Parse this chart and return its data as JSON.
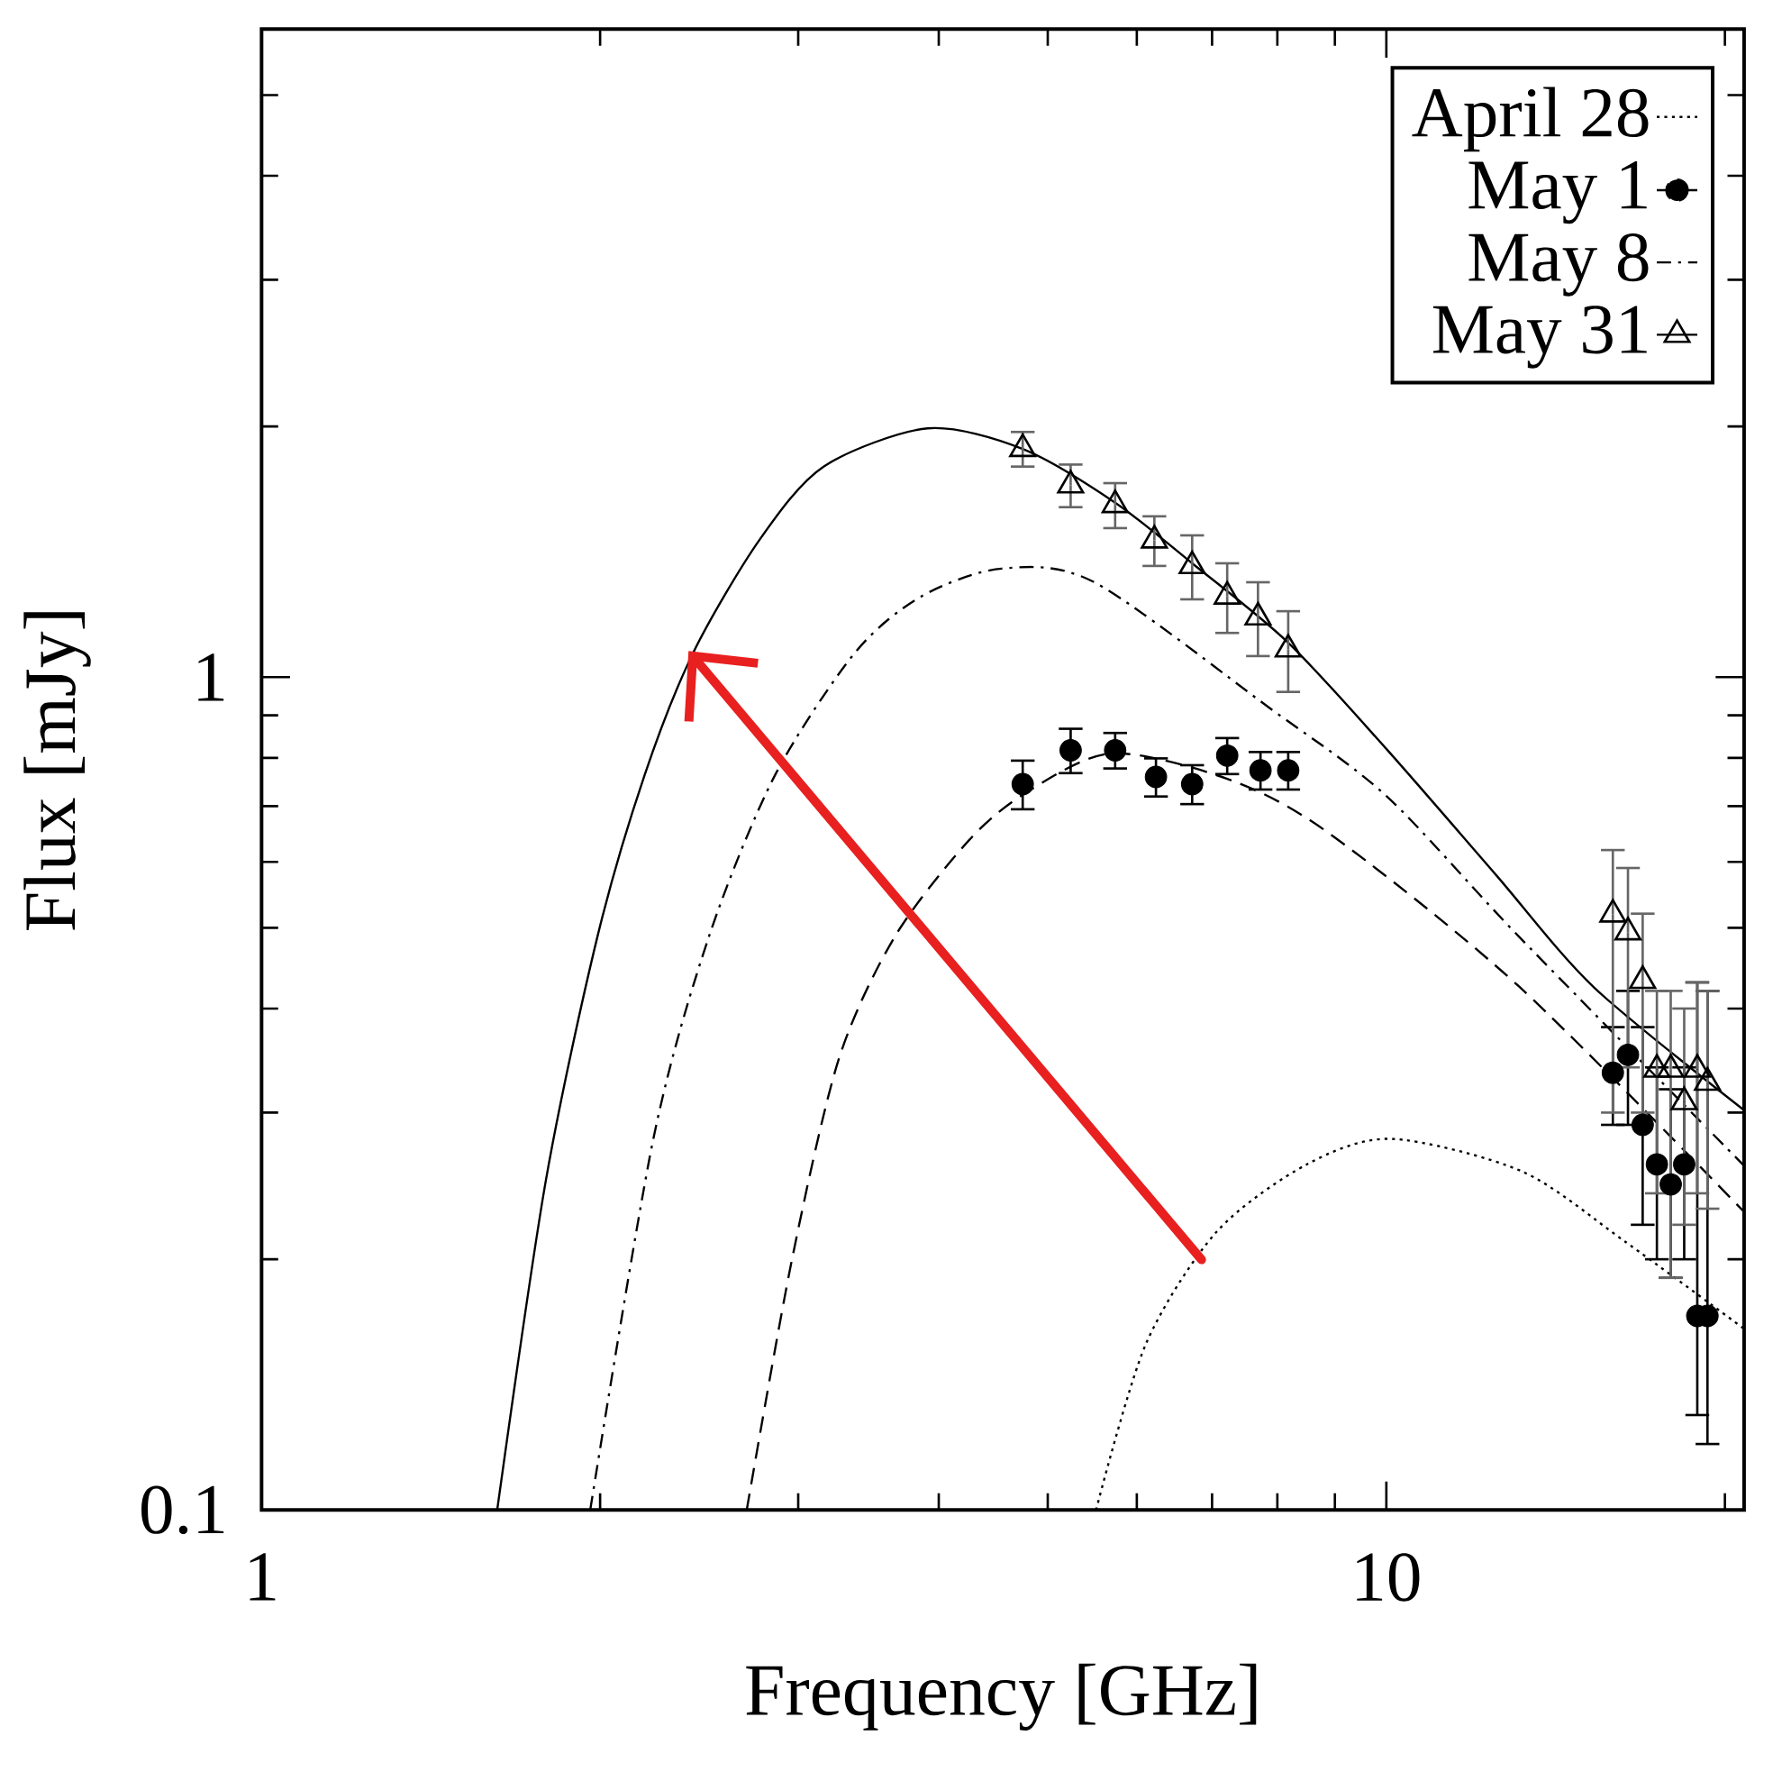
{
  "chart_data": {
    "type": "line",
    "xlabel": "Frequency [GHz]",
    "ylabel": "Flux [mJy]",
    "log": "xy",
    "legend": "top right",
    "xlim": [
      1,
      20.8
    ],
    "ylim": [
      0.1,
      6
    ],
    "xticks": [
      1,
      10,
      {
        "value": 2,
        "label": null
      },
      {
        "value": 3,
        "label": null
      },
      {
        "value": 4,
        "label": null
      },
      {
        "value": 5,
        "label": null
      },
      {
        "value": 6,
        "label": null
      },
      {
        "value": 7,
        "label": null
      },
      {
        "value": 8,
        "label": null
      },
      {
        "value": 9,
        "label": null
      },
      {
        "value": 20,
        "label": null
      }
    ],
    "yticks": [
      0.1,
      1,
      {
        "value": 0.2,
        "label": null
      },
      {
        "value": 0.3,
        "label": null
      },
      {
        "value": 0.4,
        "label": null
      },
      {
        "value": 0.5,
        "label": null
      },
      {
        "value": 0.6,
        "label": null
      },
      {
        "value": 0.7,
        "label": null
      },
      {
        "value": 0.8,
        "label": null
      },
      {
        "value": 0.9,
        "label": null
      },
      {
        "value": 2,
        "label": null
      },
      {
        "value": 3,
        "label": null
      },
      {
        "value": 4,
        "label": null
      },
      {
        "value": 5,
        "label": null
      }
    ],
    "series": [
      {
        "name": "April 28",
        "type": "line",
        "color": "#000000",
        "line_style": "dotted",
        "x": [
          5.52,
          6.11,
          7.07,
          8.5,
          10.1,
          13.2,
          16.3,
          20.8
        ],
        "values": [
          0.1,
          0.158,
          0.216,
          0.26,
          0.279,
          0.255,
          0.21,
          0.165
        ]
      },
      {
        "name": "May 1",
        "type": "line",
        "color": "#000000",
        "line_style": "dashed",
        "x": [
          2.7,
          2.96,
          3.26,
          3.66,
          4.26,
          4.8,
          5.7,
          7.22,
          8.87,
          13.1,
          20.8
        ],
        "values": [
          0.1,
          0.199,
          0.348,
          0.489,
          0.638,
          0.729,
          0.81,
          0.755,
          0.651,
          0.426,
          0.228
        ]
      },
      {
        "type": "scatter",
        "color": "#000000",
        "marker": "circle",
        "x": [
          4.75,
          5.24,
          5.74,
          6.24,
          6.72,
          7.22,
          7.73,
          8.18,
          15.9,
          16.4,
          16.9,
          17.4,
          17.9,
          18.4,
          18.9,
          19.3
        ],
        "values": [
          0.744,
          0.817,
          0.817,
          0.759,
          0.744,
          0.805,
          0.773,
          0.773,
          0.335,
          0.352,
          0.29,
          0.26,
          0.246,
          0.26,
          0.171,
          0.171
        ],
        "errors": [
          0.05,
          0.05,
          0.04,
          0.04,
          0.04,
          0.04,
          0.04,
          0.04,
          [
            0.29,
            0.38
          ],
          [
            0.29,
            0.42
          ],
          [
            0.22,
            0.38
          ],
          [
            0.2,
            0.34
          ],
          [
            0.19,
            0.32
          ],
          [
            0.2,
            0.34
          ],
          [
            0.13,
            0.43
          ],
          [
            0.12,
            0.42
          ]
        ]
      },
      {
        "name": "May 8",
        "type": "line",
        "color": "#000000",
        "line_style": "dashdot",
        "x": [
          1.96,
          2.23,
          2.5,
          2.86,
          3.37,
          3.86,
          4.55,
          5.5,
          7.86,
          10,
          13.1,
          20.8
        ],
        "values": [
          0.1,
          0.279,
          0.489,
          0.762,
          1.07,
          1.25,
          1.35,
          1.3,
          0.92,
          0.72,
          0.489,
          0.259
        ]
      },
      {
        "name": "May 31",
        "type": "line",
        "color": "#000000",
        "line_style": "solid",
        "x": [
          1.62,
          1.79,
          1.99,
          2.19,
          2.42,
          2.77,
          3.16,
          3.91,
          4.75,
          5.74,
          6.72,
          8.18,
          10,
          12.5,
          15.3,
          20.8
        ],
        "values": [
          0.1,
          0.249,
          0.489,
          0.762,
          1.07,
          1.46,
          1.79,
          1.99,
          1.88,
          1.62,
          1.37,
          1.1,
          0.82,
          0.58,
          0.424,
          0.302
        ]
      },
      {
        "type": "scatter",
        "color": "#000000",
        "marker": "triangle",
        "x": [
          4.75,
          5.24,
          5.74,
          6.22,
          6.72,
          7.22,
          7.69,
          8.18,
          15.9,
          16.4,
          16.9,
          17.4,
          17.9,
          18.4,
          18.9,
          19.3
        ],
        "values": [
          1.88,
          1.7,
          1.61,
          1.46,
          1.36,
          1.25,
          1.18,
          1.08,
          0.519,
          0.494,
          0.432,
          0.338,
          0.338,
          0.309,
          0.338,
          0.326
        ],
        "errors": [
          0.09,
          0.1,
          0.1,
          0.1,
          0.12,
          0.12,
          0.12,
          0.12,
          [
            0.3,
            0.62
          ],
          [
            0.34,
            0.59
          ],
          [
            0.3,
            0.52
          ],
          [
            0.24,
            0.42
          ],
          [
            0.19,
            0.42
          ],
          [
            0.22,
            0.4
          ],
          [
            0.24,
            0.43
          ],
          [
            0.23,
            0.42
          ]
        ]
      }
    ]
  }
}
